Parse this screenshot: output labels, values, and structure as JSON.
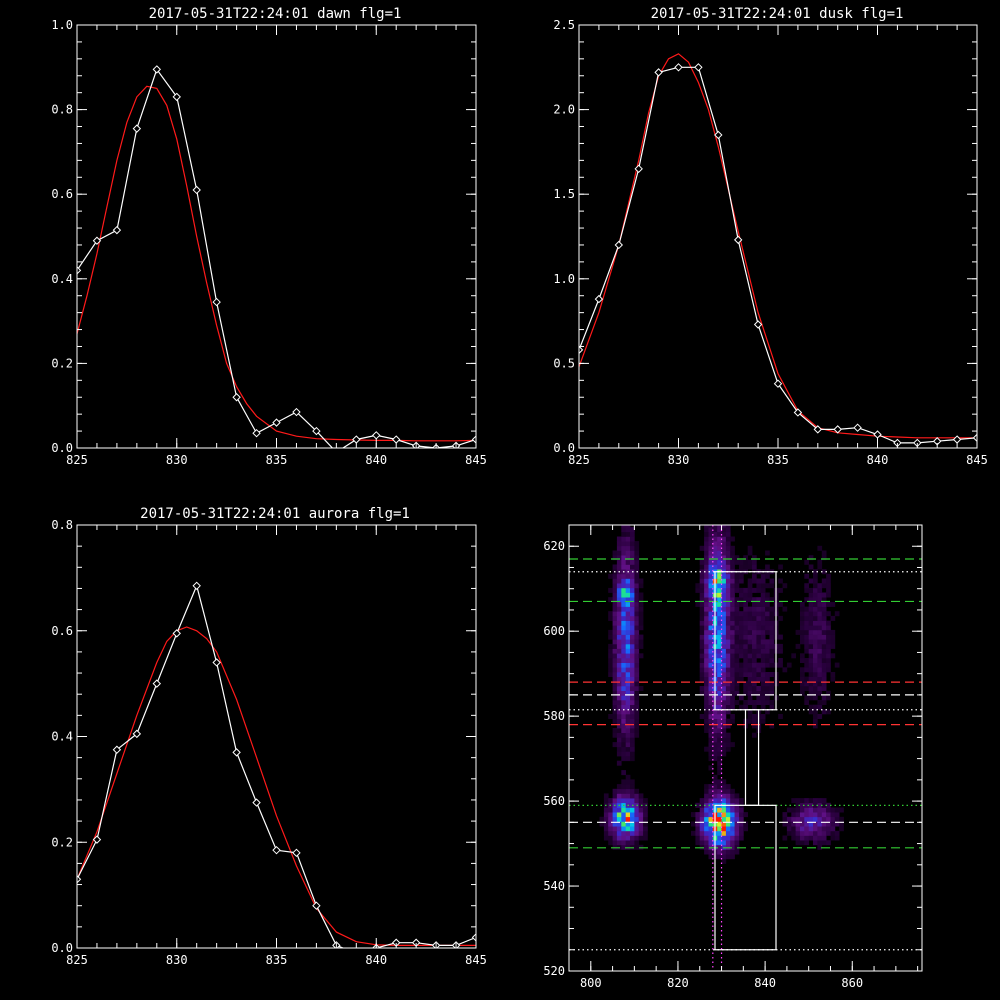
{
  "colors": {
    "background": "#000000",
    "axes": "#ffffff",
    "data_line": "#ffffff",
    "fit_line": "#ff1a1a",
    "guide_green": "#33cc33",
    "guide_red": "#ff3333",
    "guide_white": "#ffffff",
    "guide_magenta": "#ff44ff"
  },
  "chart_data": [
    {
      "type": "line",
      "title": "2017-05-31T22:24:01 dawn flg=1",
      "xlim": [
        825,
        845
      ],
      "ylim": [
        0,
        1.0
      ],
      "xticks": [
        "825",
        "830",
        "835",
        "840",
        "845"
      ],
      "yticks": [
        "0.0",
        "0.2",
        "0.4",
        "0.6",
        "0.8",
        "1.0"
      ],
      "series": [
        {
          "x": [
            825,
            826,
            827,
            828,
            829,
            830,
            831,
            832,
            833,
            834,
            835,
            836,
            837,
            838,
            839,
            840,
            841,
            842,
            843,
            844,
            845
          ],
          "values": [
            0.42,
            0.49,
            0.515,
            0.755,
            0.895,
            0.83,
            0.61,
            0.345,
            0.12,
            0.035,
            0.06,
            0.085,
            0.04,
            -0.01,
            0.02,
            0.03,
            0.02,
            0.005,
            0.0,
            0.005,
            0.02
          ],
          "markers": true,
          "color": "#ffffff"
        },
        {
          "x": [
            825,
            825.5,
            826,
            826.5,
            827,
            827.5,
            828,
            828.5,
            829,
            829.5,
            830,
            830.5,
            831,
            831.5,
            832,
            832.5,
            833,
            833.5,
            834,
            835,
            836,
            837,
            838,
            839,
            840,
            841,
            842,
            843,
            844,
            845
          ],
          "values": [
            0.27,
            0.36,
            0.46,
            0.57,
            0.68,
            0.77,
            0.83,
            0.855,
            0.85,
            0.81,
            0.73,
            0.62,
            0.5,
            0.39,
            0.29,
            0.2,
            0.145,
            0.105,
            0.075,
            0.04,
            0.028,
            0.022,
            0.02,
            0.019,
            0.018,
            0.018,
            0.017,
            0.017,
            0.017,
            0.018
          ],
          "markers": false,
          "color": "#ff1a1a"
        }
      ]
    },
    {
      "type": "line",
      "title": "2017-05-31T22:24:01 dusk flg=1",
      "xlim": [
        825,
        845
      ],
      "ylim": [
        0,
        2.5
      ],
      "xticks": [
        "825",
        "830",
        "835",
        "840",
        "845"
      ],
      "yticks": [
        "0.0",
        "0.5",
        "1.0",
        "1.5",
        "2.0",
        "2.5"
      ],
      "series": [
        {
          "x": [
            825,
            826,
            827,
            828,
            829,
            830,
            831,
            832,
            833,
            834,
            835,
            836,
            837,
            838,
            839,
            840,
            841,
            842,
            843,
            844,
            845
          ],
          "values": [
            0.58,
            0.88,
            1.2,
            1.65,
            2.22,
            2.25,
            2.25,
            1.85,
            1.23,
            0.73,
            0.38,
            0.21,
            0.11,
            0.11,
            0.12,
            0.08,
            0.03,
            0.03,
            0.04,
            0.05,
            0.06
          ],
          "markers": true,
          "color": "#ffffff"
        },
        {
          "x": [
            825,
            826,
            827,
            828,
            828.5,
            829,
            829.5,
            830,
            830.5,
            831,
            831.5,
            832,
            833,
            834,
            835,
            836,
            837,
            838,
            839,
            840,
            841,
            842,
            843,
            844,
            845
          ],
          "values": [
            0.48,
            0.8,
            1.2,
            1.7,
            1.98,
            2.2,
            2.3,
            2.33,
            2.28,
            2.16,
            2.0,
            1.78,
            1.28,
            0.8,
            0.44,
            0.22,
            0.12,
            0.09,
            0.08,
            0.07,
            0.065,
            0.06,
            0.06,
            0.06,
            0.06
          ],
          "markers": false,
          "color": "#ff1a1a"
        }
      ]
    },
    {
      "type": "line",
      "title": "2017-05-31T22:24:01 aurora flg=1",
      "xlim": [
        825,
        845
      ],
      "ylim": [
        0,
        0.8
      ],
      "xticks": [
        "825",
        "830",
        "835",
        "840",
        "845"
      ],
      "yticks": [
        "0.0",
        "0.2",
        "0.4",
        "0.6",
        "0.8"
      ],
      "series": [
        {
          "x": [
            825,
            826,
            827,
            828,
            829,
            830,
            831,
            832,
            833,
            834,
            835,
            836,
            837,
            838,
            839,
            840,
            841,
            842,
            843,
            844,
            845
          ],
          "values": [
            0.13,
            0.205,
            0.375,
            0.405,
            0.5,
            0.595,
            0.685,
            0.54,
            0.37,
            0.275,
            0.185,
            0.18,
            0.08,
            0.005,
            -0.01,
            0.0,
            0.01,
            0.01,
            0.005,
            0.005,
            0.02
          ],
          "markers": true,
          "color": "#ffffff"
        },
        {
          "x": [
            825,
            826,
            827,
            828,
            829,
            829.5,
            830,
            830.5,
            831,
            831.5,
            832,
            833,
            834,
            835,
            836,
            837,
            838,
            839,
            840,
            841,
            842,
            843,
            844,
            845
          ],
          "values": [
            0.13,
            0.22,
            0.33,
            0.44,
            0.54,
            0.58,
            0.6,
            0.607,
            0.6,
            0.585,
            0.56,
            0.47,
            0.36,
            0.25,
            0.155,
            0.075,
            0.03,
            0.012,
            0.006,
            0.005,
            0.005,
            0.005,
            0.005,
            0.005
          ],
          "markers": false,
          "color": "#ff1a1a"
        }
      ]
    },
    {
      "type": "heatmap",
      "xlim": [
        795,
        876
      ],
      "ylim": [
        520,
        625
      ],
      "xticks": [
        "800",
        "820",
        "840",
        "860"
      ],
      "yticks": [
        "520",
        "540",
        "560",
        "580",
        "600",
        "620"
      ],
      "blobs": [
        {
          "x": 808,
          "y": 598,
          "sx": 1.6,
          "sy": 14,
          "peak": 0.45
        },
        {
          "x": 808,
          "y": 609,
          "sx": 1.3,
          "sy": 2,
          "peak": 0.3
        },
        {
          "x": 808,
          "y": 556,
          "sx": 2.2,
          "sy": 3.2,
          "peak": 0.75
        },
        {
          "x": 829,
          "y": 600,
          "sx": 1.8,
          "sy": 14,
          "peak": 0.55
        },
        {
          "x": 829,
          "y": 612,
          "sx": 1.6,
          "sy": 2.5,
          "peak": 0.45
        },
        {
          "x": 829.5,
          "y": 555,
          "sx": 2.4,
          "sy": 3.6,
          "peak": 1.0
        },
        {
          "x": 851,
          "y": 555,
          "sx": 3.5,
          "sy": 2.8,
          "peak": 0.3
        },
        {
          "x": 852,
          "y": 598,
          "sx": 2.5,
          "sy": 12,
          "peak": 0.12
        },
        {
          "x": 838,
          "y": 598,
          "sx": 4,
          "sy": 14,
          "peak": 0.1
        }
      ],
      "hlines": [
        {
          "y": 617,
          "style": "dashed",
          "color": "#33cc33"
        },
        {
          "y": 614,
          "style": "dotted",
          "color": "#ffffff"
        },
        {
          "y": 607,
          "style": "dashed",
          "color": "#33cc33"
        },
        {
          "y": 588,
          "style": "dashed",
          "color": "#ff3333"
        },
        {
          "y": 585,
          "style": "dashed",
          "color": "#ffffff"
        },
        {
          "y": 581.5,
          "style": "dotted",
          "color": "#ffffff"
        },
        {
          "y": 578,
          "style": "dashed",
          "color": "#ff3333"
        },
        {
          "y": 559,
          "style": "dotted",
          "color": "#33cc33"
        },
        {
          "y": 555,
          "style": "dashed",
          "color": "#ffffff"
        },
        {
          "y": 549,
          "style": "dashed",
          "color": "#33cc33"
        },
        {
          "y": 525,
          "style": "dotted",
          "color": "#ffffff"
        }
      ],
      "vlines": [
        {
          "x": 828,
          "style": "dotted",
          "color": "#ff44ff"
        },
        {
          "x": 830,
          "style": "dotted",
          "color": "#ff44ff"
        }
      ],
      "boxes": [
        {
          "x0": 828.5,
          "x1": 842.5,
          "y0": 581.5,
          "y1": 614
        },
        {
          "x0": 835.5,
          "x1": 838.5,
          "y0": 559,
          "y1": 581.5
        },
        {
          "x0": 828.5,
          "x1": 842.5,
          "y0": 525,
          "y1": 559
        }
      ]
    }
  ]
}
